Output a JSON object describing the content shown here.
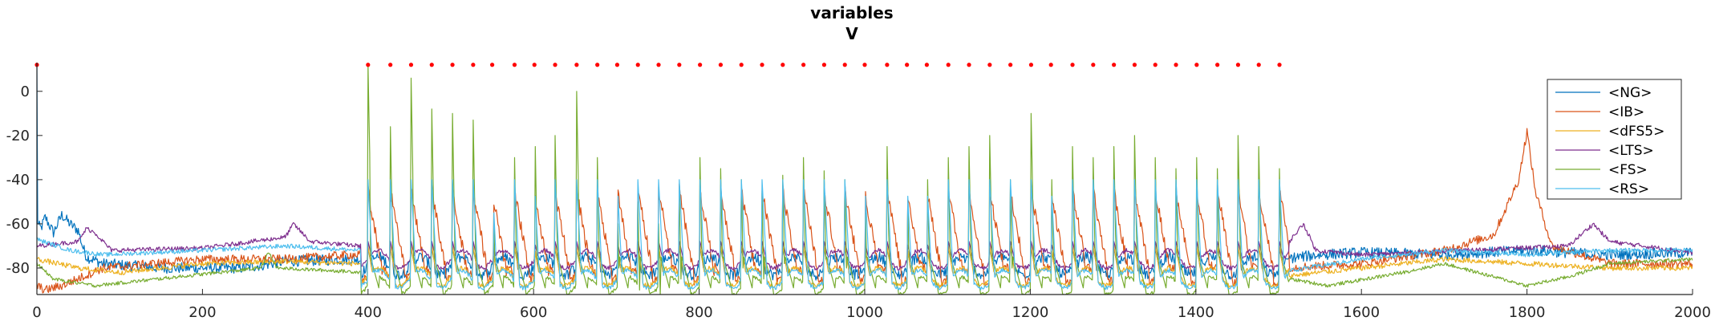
{
  "chart_data": {
    "type": "line",
    "title": [
      "variables",
      "V"
    ],
    "xlabel": "",
    "ylabel": "",
    "xlim": [
      0,
      2000
    ],
    "ylim": [
      -92,
      13
    ],
    "x_ticks": [
      0,
      200,
      400,
      600,
      800,
      1000,
      1200,
      1400,
      1600,
      1800,
      2000
    ],
    "y_ticks": [
      0,
      -20,
      -40,
      -60,
      -80
    ],
    "grid": false,
    "legend_position": "top-right",
    "series": [
      {
        "name": "<NG>",
        "color": "#0072BD",
        "baseline": -79,
        "spike_peak": -71,
        "spike_width": 4,
        "noise": 2.5,
        "points": [
          [
            0,
            -60
          ],
          [
            5,
            -62
          ],
          [
            10,
            -57
          ],
          [
            20,
            -64
          ],
          [
            30,
            -56
          ],
          [
            40,
            -60
          ],
          [
            50,
            -63
          ],
          [
            55,
            -70
          ],
          [
            60,
            -75
          ],
          [
            80,
            -78
          ],
          [
            150,
            -80
          ],
          [
            250,
            -80
          ],
          [
            300,
            -77
          ],
          [
            380,
            -76
          ],
          [
            400,
            -76
          ],
          [
            1500,
            -76
          ],
          [
            1550,
            -74
          ],
          [
            1600,
            -73
          ],
          [
            1700,
            -74
          ],
          [
            1800,
            -72
          ],
          [
            1900,
            -74
          ],
          [
            2000,
            -73
          ]
        ]
      },
      {
        "name": "<IB>",
        "color": "#D95319",
        "baseline": -83,
        "spike_peak": -45,
        "spike_width": 18,
        "noise": 2.0,
        "points": [
          [
            0,
            -88
          ],
          [
            10,
            -90
          ],
          [
            30,
            -88
          ],
          [
            80,
            -80
          ],
          [
            200,
            -76
          ],
          [
            300,
            -76
          ],
          [
            380,
            -74
          ],
          [
            1500,
            -80
          ],
          [
            1600,
            -78
          ],
          [
            1700,
            -72
          ],
          [
            1760,
            -65
          ],
          [
            1790,
            -40
          ],
          [
            1800,
            -18
          ],
          [
            1810,
            -45
          ],
          [
            1830,
            -70
          ],
          [
            1900,
            -78
          ],
          [
            2000,
            -78
          ]
        ]
      },
      {
        "name": "<dFS5>",
        "color": "#EDB120",
        "baseline": -84,
        "spike_peak": -70,
        "spike_width": 6,
        "noise": 1.2,
        "points": [
          [
            0,
            -76
          ],
          [
            50,
            -80
          ],
          [
            100,
            -82
          ],
          [
            200,
            -78
          ],
          [
            300,
            -77
          ],
          [
            390,
            -78
          ],
          [
            1500,
            -84
          ],
          [
            1600,
            -80
          ],
          [
            1700,
            -76
          ],
          [
            1800,
            -78
          ],
          [
            1900,
            -80
          ],
          [
            2000,
            -80
          ]
        ]
      },
      {
        "name": "<LTS>",
        "color": "#7E2F8E",
        "baseline": -76,
        "spike_peak": -68,
        "spike_width": 5,
        "noise": 1.0,
        "points": [
          [
            0,
            -70
          ],
          [
            50,
            -68
          ],
          [
            60,
            -62
          ],
          [
            70,
            -64
          ],
          [
            90,
            -72
          ],
          [
            200,
            -71
          ],
          [
            300,
            -66
          ],
          [
            310,
            -60
          ],
          [
            330,
            -68
          ],
          [
            390,
            -70
          ],
          [
            1500,
            -74
          ],
          [
            1530,
            -60
          ],
          [
            1545,
            -72
          ],
          [
            1600,
            -74
          ],
          [
            1850,
            -70
          ],
          [
            1880,
            -60
          ],
          [
            1900,
            -68
          ],
          [
            2000,
            -73
          ]
        ]
      },
      {
        "name": "<FS>",
        "color": "#77AC30",
        "baseline": -88,
        "spike_peak": -18,
        "spike_width": 3,
        "noise": 0.8,
        "points": [
          [
            0,
            -78
          ],
          [
            20,
            -85
          ],
          [
            70,
            -88
          ],
          [
            120,
            -86
          ],
          [
            270,
            -80
          ],
          [
            280,
            -73
          ],
          [
            290,
            -80
          ],
          [
            400,
            -82
          ],
          [
            1500,
            -84
          ],
          [
            1560,
            -88
          ],
          [
            1650,
            -82
          ],
          [
            1700,
            -78
          ],
          [
            1800,
            -88
          ],
          [
            1850,
            -84
          ],
          [
            1900,
            -78
          ],
          [
            2000,
            -76
          ]
        ]
      },
      {
        "name": "<RS>",
        "color": "#4DBEEE",
        "baseline": -85,
        "spike_peak": -40,
        "spike_width": 6,
        "noise": 1.0,
        "points": [
          [
            0,
            -67
          ],
          [
            40,
            -72
          ],
          [
            80,
            -74
          ],
          [
            200,
            -72
          ],
          [
            300,
            -70
          ],
          [
            390,
            -72
          ],
          [
            1500,
            -82
          ],
          [
            1600,
            -76
          ],
          [
            1700,
            -72
          ],
          [
            1800,
            -74
          ],
          [
            1900,
            -72
          ],
          [
            2000,
            -72
          ]
        ]
      }
    ],
    "burst_times": [
      400,
      427,
      452,
      477,
      502,
      527,
      550,
      577,
      601,
      626,
      652,
      677,
      701,
      726,
      751,
      776,
      801,
      826,
      851,
      876,
      901,
      926,
      951,
      976,
      1000,
      1027,
      1051,
      1075,
      1101,
      1126,
      1151,
      1176,
      1201,
      1225,
      1251,
      1276,
      1301,
      1326,
      1351,
      1376,
      1401,
      1426,
      1451,
      1476,
      1501
    ],
    "fs_peaks": [
      12,
      -16,
      6,
      -8,
      -10,
      -13,
      -18,
      -30,
      -5,
      -20,
      0,
      -30,
      -40,
      -50,
      -60,
      -45,
      -30,
      -35,
      -40,
      -45,
      -38,
      -30,
      -36,
      -40,
      -35,
      -25,
      -30,
      -20,
      -30,
      -25,
      -20,
      -40,
      -10,
      -20,
      -25,
      -30,
      -25,
      -20,
      -30,
      -35,
      -30,
      -35,
      -20,
      -25,
      -35
    ],
    "raster_markers": {
      "color": "#ff0000",
      "y": 12,
      "x": [
        0,
        400,
        427,
        452,
        477,
        502,
        527,
        550,
        577,
        601,
        626,
        652,
        677,
        701,
        726,
        751,
        776,
        801,
        826,
        851,
        876,
        901,
        926,
        951,
        976,
        1000,
        1027,
        1051,
        1075,
        1101,
        1126,
        1151,
        1176,
        1201,
        1225,
        1251,
        1276,
        1301,
        1326,
        1351,
        1376,
        1401,
        1426,
        1451,
        1476,
        1501
      ]
    }
  }
}
